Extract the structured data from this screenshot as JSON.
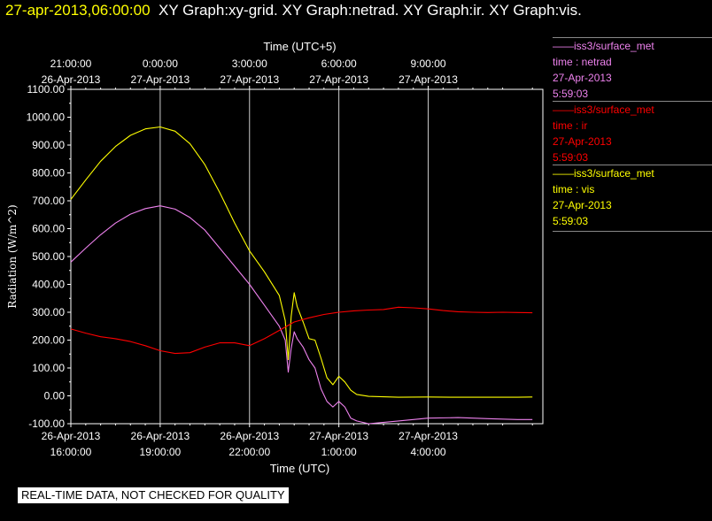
{
  "header": {
    "timestamp": "27-apr-2013,06:00:00",
    "graph_titles": "XY Graph:xy-grid.  XY Graph:netrad.  XY Graph:ir.  XY Graph:vis."
  },
  "legend": [
    {
      "source": "——iss3/surface_met",
      "variable": "time : netrad",
      "date": "27-Apr-2013",
      "time": "5:59:03",
      "color": "#ee82ee"
    },
    {
      "source": "——iss3/surface_met",
      "variable": "time : ir",
      "date": "27-Apr-2013",
      "time": "5:59:03",
      "color": "#ff0000"
    },
    {
      "source": "——iss3/surface_met",
      "variable": "time : vis",
      "date": "27-Apr-2013",
      "time": "5:59:03",
      "color": "#ffff00"
    }
  ],
  "disclaimer": "REAL-TIME DATA, NOT CHECKED FOR QUALITY",
  "chart_data": {
    "type": "line",
    "x_unit": "hours since 26-Apr-2013 16:00 UTC",
    "xlim": [
      0,
      15.85
    ],
    "ylim": [
      -100,
      1100
    ],
    "grid": true,
    "ylabel": "Radiation  (W/m^2)",
    "xlabel": "Time (UTC)",
    "top_axis_label": "Time (UTC+5)",
    "y_ticks": [
      "-100.00",
      "0.00",
      "100.00",
      "200.00",
      "300.00",
      "400.00",
      "500.00",
      "600.00",
      "700.00",
      "800.00",
      "900.00",
      "1000.00",
      "1100.00"
    ],
    "x_ticks_bottom": [
      {
        "x": 0,
        "date": "26-Apr-2013",
        "time": "16:00:00"
      },
      {
        "x": 3,
        "date": "26-Apr-2013",
        "time": "19:00:00"
      },
      {
        "x": 6,
        "date": "26-Apr-2013",
        "time": "22:00:00"
      },
      {
        "x": 9,
        "date": "27-Apr-2013",
        "time": "1:00:00"
      },
      {
        "x": 12,
        "date": "27-Apr-2013",
        "time": "4:00:00"
      }
    ],
    "x_ticks_top": [
      {
        "x": 0,
        "time": "21:00:00",
        "date": "26-Apr-2013"
      },
      {
        "x": 3,
        "time": "0:00:00",
        "date": "27-Apr-2013"
      },
      {
        "x": 6,
        "time": "3:00:00",
        "date": "27-Apr-2013"
      },
      {
        "x": 9,
        "time": "6:00:00",
        "date": "27-Apr-2013"
      },
      {
        "x": 12,
        "time": "9:00:00",
        "date": "27-Apr-2013"
      }
    ],
    "series": [
      {
        "name": "vis",
        "color": "#ffff00",
        "x": [
          0,
          0.5,
          1,
          1.5,
          2,
          2.5,
          3,
          3.5,
          4,
          4.5,
          5,
          5.5,
          6,
          6.5,
          7,
          7.2,
          7.3,
          7.4,
          7.5,
          7.6,
          7.8,
          8,
          8.2,
          8.4,
          8.6,
          8.8,
          9,
          9.2,
          9.4,
          9.6,
          10,
          11,
          12,
          13,
          14,
          15,
          15.5
        ],
        "values": [
          705,
          775,
          842,
          895,
          935,
          958,
          965,
          950,
          905,
          830,
          730,
          620,
          520,
          445,
          360,
          270,
          130,
          285,
          370,
          320,
          265,
          205,
          200,
          135,
          65,
          40,
          70,
          50,
          20,
          5,
          -2,
          -5,
          -4,
          -5,
          -5,
          -5,
          -4
        ]
      },
      {
        "name": "netrad",
        "color": "#ee82ee",
        "x": [
          0,
          0.5,
          1,
          1.5,
          2,
          2.5,
          3,
          3.5,
          4,
          4.5,
          5,
          5.5,
          6,
          6.5,
          7,
          7.2,
          7.3,
          7.4,
          7.5,
          7.6,
          7.8,
          8,
          8.2,
          8.4,
          8.6,
          8.8,
          9,
          9.2,
          9.4,
          9.6,
          10,
          11,
          12,
          13,
          14,
          15,
          15.5
        ],
        "values": [
          480,
          530,
          578,
          620,
          652,
          672,
          682,
          670,
          640,
          595,
          530,
          465,
          400,
          325,
          250,
          200,
          85,
          170,
          230,
          205,
          175,
          130,
          100,
          25,
          -20,
          -40,
          -20,
          -40,
          -80,
          -90,
          -100,
          -90,
          -80,
          -78,
          -82,
          -85,
          -85
        ]
      },
      {
        "name": "ir",
        "color": "#ff0000",
        "x": [
          0,
          0.5,
          1,
          1.5,
          2,
          2.5,
          3,
          3.5,
          4,
          4.5,
          5,
          5.5,
          6,
          6.5,
          7,
          7.5,
          8,
          8.5,
          9,
          9.5,
          10,
          10.5,
          11,
          11.5,
          12,
          12.5,
          13,
          13.5,
          14,
          14.5,
          15,
          15.5
        ],
        "values": [
          240,
          225,
          212,
          205,
          195,
          180,
          162,
          152,
          155,
          175,
          190,
          190,
          180,
          205,
          235,
          265,
          280,
          292,
          300,
          305,
          308,
          310,
          318,
          316,
          312,
          306,
          302,
          300,
          299,
          300,
          299,
          298
        ]
      }
    ]
  }
}
